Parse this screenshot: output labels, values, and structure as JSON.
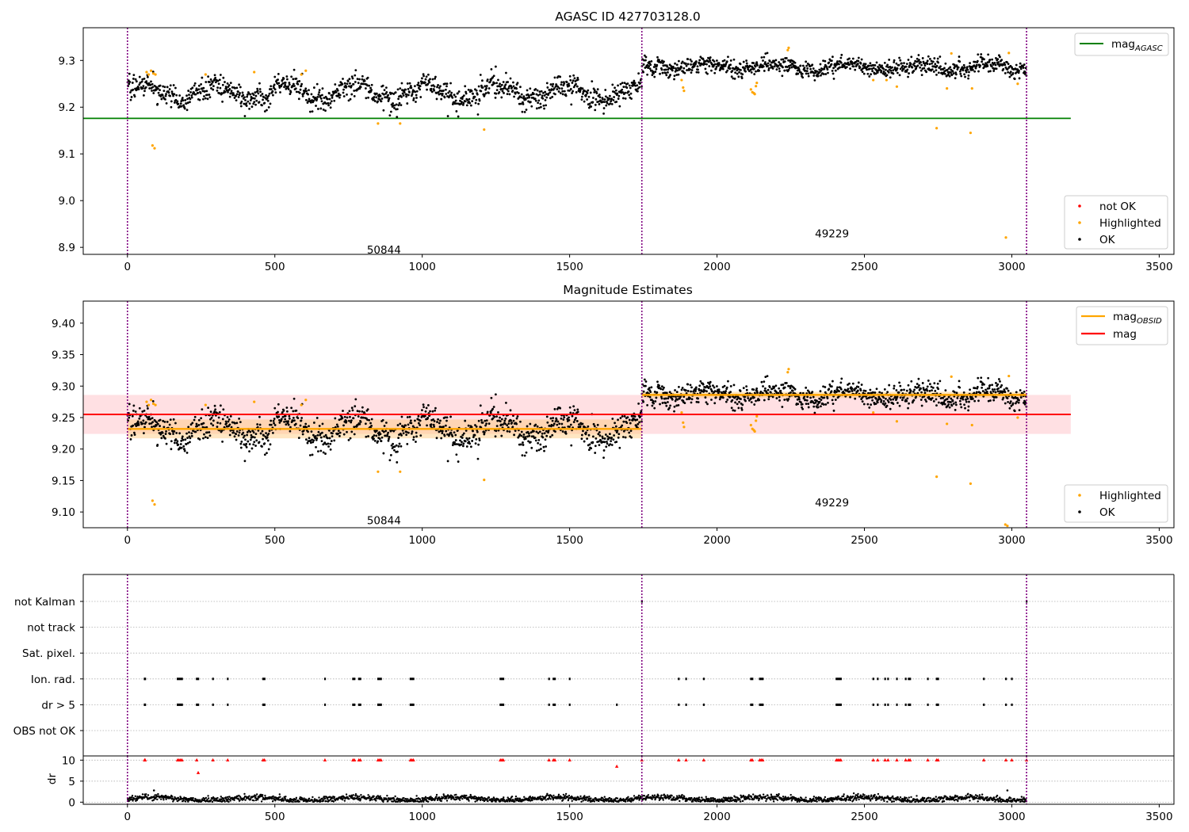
{
  "figure": {
    "colors": {
      "ok": "#000000",
      "highlighted": "#ffa500",
      "not_ok": "#ff0000",
      "mag_agasc": "#008000",
      "mag_obsid": "#ffa500",
      "mag": "#ff0000",
      "band": "#ffd8dc",
      "obs_boundary": "#800080",
      "grid": "#b0b0b0"
    }
  },
  "chart_data": [
    {
      "id": "top",
      "type": "scatter",
      "title": "AGASC ID 427703128.0",
      "xlim": [
        -150,
        3550
      ],
      "ylim": [
        8.885,
        9.37
      ],
      "xticks": [
        0,
        500,
        1000,
        1500,
        2000,
        2500,
        3000,
        3500
      ],
      "yticks": [
        8.9,
        9.0,
        9.1,
        9.2,
        9.3
      ],
      "ytick_labels": [
        "8.9",
        "9.0",
        "9.1",
        "9.2",
        "9.3"
      ],
      "obs_boundaries": [
        0,
        1745,
        3050
      ],
      "obs_labels": [
        {
          "text": "50844",
          "x": 870,
          "y": 8.895
        },
        {
          "text": "49229",
          "x": 2390,
          "y": 8.93
        }
      ],
      "lines": [
        {
          "name": "mag_AGASC",
          "label_main": "mag",
          "label_sub": "AGASC",
          "y": 9.176,
          "x_range": [
            -150,
            3200
          ],
          "color": "#008000"
        }
      ],
      "segments": [
        {
          "x_range": [
            0,
            1745
          ],
          "base": 9.232,
          "amp": 0.017,
          "noise": 0.012,
          "n": 1150
        },
        {
          "x_range": [
            1745,
            3050
          ],
          "base": 9.286,
          "amp": 0.006,
          "noise": 0.009,
          "n": 900
        }
      ],
      "highlighted": [
        [
          65,
          9.275
        ],
        [
          72,
          9.27
        ],
        [
          80,
          9.278
        ],
        [
          88,
          9.272
        ],
        [
          95,
          9.27
        ],
        [
          85,
          9.118
        ],
        [
          92,
          9.112
        ],
        [
          265,
          9.27
        ],
        [
          430,
          9.275
        ],
        [
          590,
          9.27
        ],
        [
          605,
          9.278
        ],
        [
          850,
          9.165
        ],
        [
          925,
          9.165
        ],
        [
          1210,
          9.152
        ],
        [
          1880,
          9.258
        ],
        [
          1885,
          9.242
        ],
        [
          1888,
          9.235
        ],
        [
          2115,
          9.238
        ],
        [
          2120,
          9.232
        ],
        [
          2125,
          9.23
        ],
        [
          2128,
          9.228
        ],
        [
          2132,
          9.245
        ],
        [
          2135,
          9.252
        ],
        [
          2240,
          9.322
        ],
        [
          2243,
          9.327
        ],
        [
          2530,
          9.258
        ],
        [
          2575,
          9.258
        ],
        [
          2610,
          9.244
        ],
        [
          2745,
          9.155
        ],
        [
          2780,
          9.24
        ],
        [
          2795,
          9.315
        ],
        [
          2860,
          9.145
        ],
        [
          2865,
          9.24
        ],
        [
          2980,
          8.921
        ],
        [
          2990,
          9.316
        ],
        [
          3020,
          9.25
        ]
      ],
      "legend_lines": [
        {
          "main": "mag",
          "sub": "AGASC",
          "color": "#008000"
        }
      ],
      "legend_markers": [
        {
          "label": "not OK",
          "color": "#ff0000"
        },
        {
          "label": "Highlighted",
          "color": "#ffa500"
        },
        {
          "label": "OK",
          "color": "#000000"
        }
      ]
    },
    {
      "id": "middle",
      "type": "scatter",
      "title": "Magnitude Estimates",
      "xlim": [
        -150,
        3550
      ],
      "ylim": [
        9.075,
        9.435
      ],
      "xticks": [
        0,
        500,
        1000,
        1500,
        2000,
        2500,
        3000,
        3500
      ],
      "yticks": [
        9.1,
        9.15,
        9.2,
        9.25,
        9.3,
        9.35,
        9.4
      ],
      "ytick_labels": [
        "9.10",
        "9.15",
        "9.20",
        "9.25",
        "9.30",
        "9.35",
        "9.40"
      ],
      "obs_boundaries": [
        0,
        1745,
        3050
      ],
      "obs_labels": [
        {
          "text": "50844",
          "x": 870,
          "y": 9.087
        },
        {
          "text": "49229",
          "x": 2390,
          "y": 9.115
        }
      ],
      "mag_band": {
        "center": 9.255,
        "lo": 9.224,
        "hi": 9.286,
        "x_range": [
          -150,
          3200
        ]
      },
      "obsid_mags": [
        {
          "x_range": [
            0,
            1745
          ],
          "y": 9.232,
          "lo": 9.217,
          "hi": 9.247
        },
        {
          "x_range": [
            1745,
            3050
          ],
          "y": 9.286,
          "lo": 9.281,
          "hi": 9.291
        }
      ],
      "segments": [
        {
          "x_range": [
            0,
            1745
          ],
          "base": 9.232,
          "amp": 0.017,
          "noise": 0.012,
          "n": 1150
        },
        {
          "x_range": [
            1745,
            3050
          ],
          "base": 9.286,
          "amp": 0.006,
          "noise": 0.009,
          "n": 900
        }
      ],
      "highlighted": [
        [
          65,
          9.275
        ],
        [
          72,
          9.27
        ],
        [
          80,
          9.278
        ],
        [
          88,
          9.272
        ],
        [
          95,
          9.27
        ],
        [
          85,
          9.118
        ],
        [
          92,
          9.112
        ],
        [
          265,
          9.27
        ],
        [
          430,
          9.275
        ],
        [
          590,
          9.27
        ],
        [
          605,
          9.278
        ],
        [
          850,
          9.164
        ],
        [
          925,
          9.164
        ],
        [
          1210,
          9.151
        ],
        [
          1880,
          9.258
        ],
        [
          1885,
          9.242
        ],
        [
          1888,
          9.235
        ],
        [
          2115,
          9.238
        ],
        [
          2120,
          9.232
        ],
        [
          2125,
          9.23
        ],
        [
          2128,
          9.228
        ],
        [
          2132,
          9.245
        ],
        [
          2135,
          9.252
        ],
        [
          2240,
          9.322
        ],
        [
          2243,
          9.327
        ],
        [
          2530,
          9.258
        ],
        [
          2610,
          9.244
        ],
        [
          2745,
          9.156
        ],
        [
          2780,
          9.24
        ],
        [
          2795,
          9.315
        ],
        [
          2860,
          9.145
        ],
        [
          2865,
          9.238
        ],
        [
          2978,
          9.08
        ],
        [
          2985,
          9.078
        ],
        [
          2990,
          9.316
        ],
        [
          3020,
          9.25
        ]
      ],
      "legend_lines": [
        {
          "main": "mag",
          "sub": "OBSID",
          "color": "#ffa500"
        },
        {
          "main": "mag",
          "sub": "",
          "color": "#ff0000"
        }
      ],
      "legend_markers": [
        {
          "label": "Highlighted",
          "color": "#ffa500"
        },
        {
          "label": "OK",
          "color": "#000000"
        }
      ]
    },
    {
      "id": "flags",
      "type": "scatter",
      "xlim": [
        -150,
        3550
      ],
      "obs_boundaries": [
        0,
        1745,
        3050
      ],
      "flag_rows": [
        "not Kalman",
        "not track",
        "Sat. pixel.",
        "Ion. rad.",
        "dr > 5",
        "OBS not OK"
      ],
      "flag_events": {
        "not Kalman": [
          1745,
          3050
        ],
        "not track": [],
        "Sat. pixel.": [],
        "Ion. rad.": [
          58,
          60,
          170,
          175,
          180,
          185,
          235,
          240,
          290,
          340,
          460,
          465,
          670,
          765,
          770,
          785,
          790,
          850,
          855,
          860,
          960,
          965,
          970,
          1265,
          1270,
          1275,
          1430,
          1445,
          1450,
          1500,
          1870,
          1895,
          1955,
          2115,
          2120,
          2145,
          2150,
          2155,
          2405,
          2410,
          2415,
          2420,
          2530,
          2545,
          2570,
          2580,
          2610,
          2640,
          2650,
          2655,
          2715,
          2745,
          2750,
          2905,
          2980,
          3000
        ],
        "dr > 5": [
          58,
          60,
          170,
          175,
          180,
          185,
          235,
          240,
          290,
          340,
          460,
          465,
          670,
          765,
          770,
          785,
          790,
          850,
          855,
          860,
          960,
          965,
          970,
          1265,
          1270,
          1275,
          1430,
          1445,
          1450,
          1500,
          1660,
          1870,
          1895,
          1955,
          2115,
          2120,
          2145,
          2150,
          2155,
          2405,
          2410,
          2415,
          2420,
          2530,
          2545,
          2570,
          2580,
          2610,
          2640,
          2650,
          2655,
          2715,
          2745,
          2750,
          2905,
          2980,
          3000
        ],
        "OBS not OK": []
      }
    },
    {
      "id": "dr",
      "type": "scatter",
      "ylabel": "dr",
      "xlim": [
        -150,
        3550
      ],
      "ylim": [
        -0.5,
        11
      ],
      "xticks": [
        0,
        500,
        1000,
        1500,
        2000,
        2500,
        3000,
        3500
      ],
      "yticks": [
        0,
        5,
        10
      ],
      "ytick_labels": [
        "0",
        "5",
        "10"
      ],
      "obs_boundaries": [
        0,
        1745,
        3050
      ],
      "flagged_dr": [
        [
          58,
          10
        ],
        [
          60,
          10
        ],
        [
          170,
          10
        ],
        [
          175,
          10
        ],
        [
          180,
          10
        ],
        [
          185,
          10
        ],
        [
          235,
          10
        ],
        [
          240,
          7
        ],
        [
          290,
          10
        ],
        [
          340,
          10
        ],
        [
          460,
          10
        ],
        [
          465,
          10
        ],
        [
          670,
          10
        ],
        [
          765,
          10
        ],
        [
          770,
          10
        ],
        [
          785,
          10
        ],
        [
          790,
          10
        ],
        [
          850,
          10
        ],
        [
          855,
          10
        ],
        [
          860,
          10
        ],
        [
          960,
          10
        ],
        [
          965,
          10
        ],
        [
          970,
          10
        ],
        [
          1265,
          10
        ],
        [
          1270,
          10
        ],
        [
          1275,
          10
        ],
        [
          1430,
          10
        ],
        [
          1445,
          10
        ],
        [
          1450,
          10
        ],
        [
          1500,
          10
        ],
        [
          1660,
          8.5
        ],
        [
          1745,
          10
        ],
        [
          1870,
          10
        ],
        [
          1895,
          10
        ],
        [
          1955,
          10
        ],
        [
          2115,
          10
        ],
        [
          2120,
          10
        ],
        [
          2145,
          10
        ],
        [
          2150,
          10
        ],
        [
          2155,
          10
        ],
        [
          2405,
          10
        ],
        [
          2410,
          10
        ],
        [
          2415,
          10
        ],
        [
          2420,
          10
        ],
        [
          2530,
          10
        ],
        [
          2545,
          10
        ],
        [
          2570,
          10
        ],
        [
          2580,
          10
        ],
        [
          2610,
          10
        ],
        [
          2640,
          10
        ],
        [
          2650,
          10
        ],
        [
          2655,
          10
        ],
        [
          2715,
          10
        ],
        [
          2745,
          10
        ],
        [
          2750,
          10
        ],
        [
          2905,
          10
        ],
        [
          2980,
          10
        ],
        [
          3000,
          10
        ],
        [
          3050,
          10
        ]
      ],
      "outlier_dr": [
        [
          90,
          2.8
        ],
        [
          2985,
          2.8
        ]
      ]
    }
  ]
}
